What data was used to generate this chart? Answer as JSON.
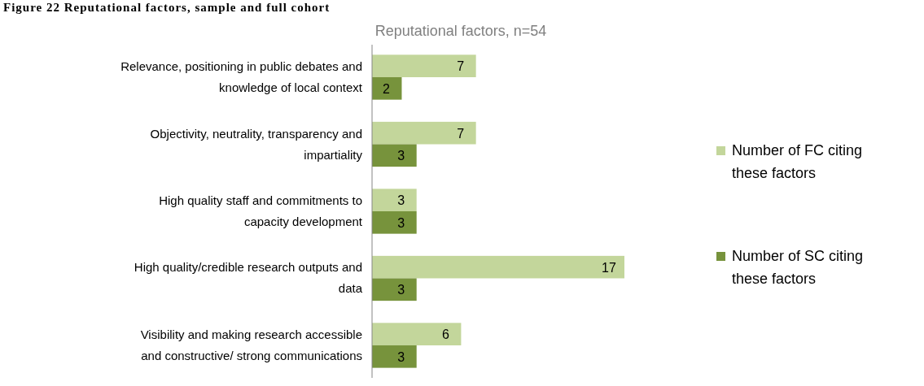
{
  "chart_data": {
    "type": "bar",
    "orientation": "horizontal",
    "title": "Figure 22 Reputational factors, sample and full cohort",
    "subtitle": "Reputational factors, n=54",
    "categories": [
      "Relevance, positioning in public debates and knowledge of local context",
      "Objectivity, neutrality, transparency and impartiality",
      "High quality staff and commitments to capacity development",
      "High quality/credible research outputs and data",
      "Visibility and making research accessible and constructive/ strong communications"
    ],
    "series": [
      {
        "name": "Number of FC citing these factors",
        "color": "#c3d69b",
        "values": [
          7,
          7,
          3,
          17,
          6
        ]
      },
      {
        "name": "Number of SC citing these factors",
        "color": "#77933c",
        "values": [
          2,
          3,
          3,
          3,
          3
        ]
      }
    ],
    "data_labels": true,
    "legend": "right"
  }
}
